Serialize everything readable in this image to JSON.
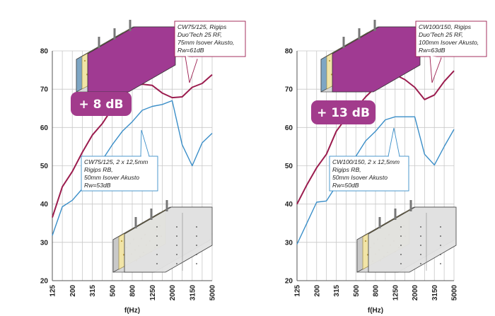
{
  "chart_data": [
    {
      "type": "line",
      "title": "",
      "xlabel": "f(Hz)",
      "ylabel": "",
      "ylim": [
        20,
        80
      ],
      "yticks": [
        "20",
        "30",
        "40",
        "50",
        "60",
        "70",
        "80"
      ],
      "categories": [
        "125",
        "160",
        "200",
        "250",
        "315",
        "400",
        "500",
        "630",
        "800",
        "1000",
        "1250",
        "1600",
        "2000",
        "2500",
        "3150",
        "4000",
        "5000"
      ],
      "x_tick_labels": [
        "125",
        "200",
        "315",
        "500",
        "800",
        "1250",
        "2000",
        "3150",
        "5000"
      ],
      "badge": "+ 8 dB",
      "series": [
        {
          "color": "#9b1c4e",
          "values": [
            36.5,
            44.5,
            48.5,
            53.5,
            58,
            61,
            65,
            68,
            70.5,
            71.3,
            71,
            69,
            67.8,
            68,
            70.5,
            71.5,
            73.8
          ]
        },
        {
          "color": "#3a8ec8",
          "values": [
            31.8,
            39.3,
            41,
            44,
            48,
            51.5,
            55.5,
            59,
            61.5,
            64.5,
            65.5,
            66,
            67,
            55.5,
            50,
            56,
            58.5
          ]
        }
      ],
      "annotations": [
        {
          "lines": [
            "CW75/125, Rigips",
            "Duo'Tech 25 RF,",
            "75mm Isover Akusto,",
            "Rw=61dB"
          ]
        },
        {
          "lines": [
            "CW75/125, 2 x 12,5mm",
            "Rigips RB,",
            "50mm Isover Akusto",
            "Rw=53dB"
          ]
        }
      ]
    },
    {
      "type": "line",
      "title": "",
      "xlabel": "f(Hz)",
      "ylabel": "",
      "ylim": [
        20,
        80
      ],
      "yticks": [
        "20",
        "30",
        "40",
        "50",
        "60",
        "70",
        "80"
      ],
      "categories": [
        "125",
        "160",
        "200",
        "250",
        "315",
        "400",
        "500",
        "630",
        "800",
        "1000",
        "1250",
        "1600",
        "2000",
        "2500",
        "3150",
        "4000",
        "5000"
      ],
      "x_tick_labels": [
        "125",
        "200",
        "315",
        "500",
        "800",
        "1250",
        "2000",
        "3150",
        "5000"
      ],
      "badge": "+ 13 dB",
      "series": [
        {
          "color": "#9b1c4e",
          "values": [
            40,
            45,
            49.5,
            53,
            59,
            62.5,
            65,
            68,
            70.5,
            73,
            73.8,
            72.5,
            70.5,
            67.3,
            68.5,
            72,
            74.8
          ]
        },
        {
          "color": "#3a8ec8",
          "values": [
            29.5,
            35,
            40.5,
            40.8,
            44.8,
            48.5,
            52.5,
            56.5,
            59,
            62,
            62.8,
            62.8,
            62.8,
            53,
            50.2,
            55,
            59.5
          ]
        }
      ],
      "annotations": [
        {
          "lines": [
            "CW100/150, Rigips",
            "Duo'Tech 25 RF,",
            "100mm Isover Akusto,",
            "Rw=63dB"
          ]
        },
        {
          "lines": [
            "CW100/150, 2 x 12,5mm",
            "Rigips RB,",
            "50mm Isover Akusto",
            "Rw=50dB"
          ]
        }
      ]
    }
  ],
  "colors": {
    "badge": "#a23b8c",
    "panel": "#a03a92",
    "grid": "#c8c8c8"
  },
  "icons": [
    "duotech-wall-section-icon",
    "double-board-wall-section-icon"
  ]
}
